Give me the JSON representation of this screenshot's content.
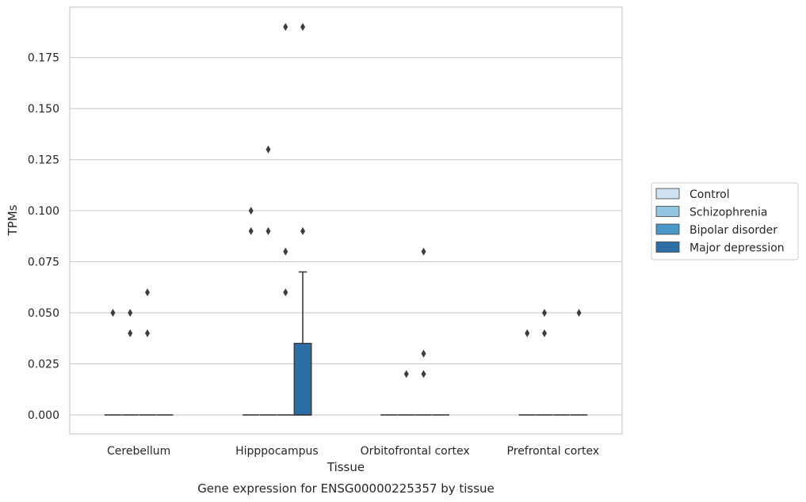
{
  "chart_data": {
    "type": "box",
    "title": "Gene expression for ENSG00000225357 by tissue",
    "xlabel": "Tissue",
    "ylabel": "TPMs",
    "ylim": [
      -0.0093,
      0.1997
    ],
    "yticks": [
      0.0,
      0.025,
      0.05,
      0.075,
      0.1,
      0.125,
      0.15,
      0.175
    ],
    "ytick_labels": [
      "0.000",
      "0.025",
      "0.050",
      "0.075",
      "0.100",
      "0.125",
      "0.150",
      "0.175"
    ],
    "grid": "horizontal",
    "legend_position": "right",
    "categories": [
      "Cerebellum",
      "Hipppocampus",
      "Orbitofrontal cortex",
      "Prefrontal cortex"
    ],
    "series": [
      {
        "name": "Control",
        "color": "#d0e1f2",
        "boxes": [
          {
            "q1": 0,
            "median": 0,
            "q3": 0,
            "whisker_low": 0,
            "whisker_high": 0,
            "outliers": [
              0.05
            ]
          },
          {
            "q1": 0,
            "median": 0,
            "q3": 0,
            "whisker_low": 0,
            "whisker_high": 0,
            "outliers": [
              0.1,
              0.09
            ]
          },
          {
            "q1": 0,
            "median": 0,
            "q3": 0,
            "whisker_low": 0,
            "whisker_high": 0,
            "outliers": []
          },
          {
            "q1": 0,
            "median": 0,
            "q3": 0,
            "whisker_low": 0,
            "whisker_high": 0,
            "outliers": [
              0.04
            ]
          }
        ]
      },
      {
        "name": "Schizophrenia",
        "color": "#94c4df",
        "boxes": [
          {
            "q1": 0,
            "median": 0,
            "q3": 0,
            "whisker_low": 0,
            "whisker_high": 0,
            "outliers": [
              0.05,
              0.04
            ]
          },
          {
            "q1": 0,
            "median": 0,
            "q3": 0,
            "whisker_low": 0,
            "whisker_high": 0,
            "outliers": [
              0.13,
              0.09
            ]
          },
          {
            "q1": 0,
            "median": 0,
            "q3": 0,
            "whisker_low": 0,
            "whisker_high": 0,
            "outliers": [
              0.02
            ]
          },
          {
            "q1": 0,
            "median": 0,
            "q3": 0,
            "whisker_low": 0,
            "whisker_high": 0,
            "outliers": [
              0.05,
              0.04
            ]
          }
        ]
      },
      {
        "name": "Bipolar disorder",
        "color": "#4a98c9",
        "boxes": [
          {
            "q1": 0,
            "median": 0,
            "q3": 0,
            "whisker_low": 0,
            "whisker_high": 0,
            "outliers": [
              0.06,
              0.04
            ]
          },
          {
            "q1": 0,
            "median": 0,
            "q3": 0,
            "whisker_low": 0,
            "whisker_high": 0,
            "outliers": [
              0.19,
              0.08,
              0.06
            ]
          },
          {
            "q1": 0,
            "median": 0,
            "q3": 0,
            "whisker_low": 0,
            "whisker_high": 0,
            "outliers": [
              0.08,
              0.03,
              0.02
            ]
          },
          {
            "q1": 0,
            "median": 0,
            "q3": 0,
            "whisker_low": 0,
            "whisker_high": 0,
            "outliers": []
          }
        ]
      },
      {
        "name": "Major depression",
        "color": "#2e6ea8",
        "boxes": [
          {
            "q1": 0,
            "median": 0,
            "q3": 0,
            "whisker_low": 0,
            "whisker_high": 0,
            "outliers": []
          },
          {
            "q1": 0,
            "median": 0,
            "q3": 0.035,
            "whisker_low": 0,
            "whisker_high": 0.07,
            "outliers": [
              0.19,
              0.09
            ]
          },
          {
            "q1": 0,
            "median": 0,
            "q3": 0,
            "whisker_low": 0,
            "whisker_high": 0,
            "outliers": []
          },
          {
            "q1": 0,
            "median": 0,
            "q3": 0,
            "whisker_low": 0,
            "whisker_high": 0,
            "outliers": [
              0.05
            ]
          }
        ]
      }
    ]
  }
}
